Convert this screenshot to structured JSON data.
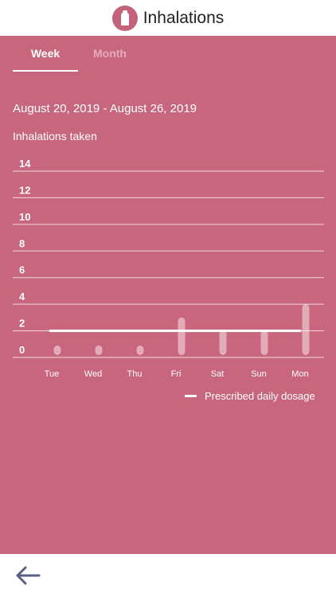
{
  "header": {
    "title": "Inhalations",
    "logo_icon": "inhaler-icon"
  },
  "tabs": [
    {
      "label": "Week",
      "active": true
    },
    {
      "label": "Month",
      "active": false
    }
  ],
  "date_range": "August 20, 2019 - August 26, 2019",
  "subtitle": "Inhalations taken",
  "legend": {
    "label": "Prescribed daily dosage"
  },
  "footer": {
    "back_icon": "arrow-left-icon"
  },
  "colors": {
    "accent": "#c8667d",
    "icon": "#5b5f86"
  },
  "chart_data": {
    "type": "bar",
    "categories": [
      "Tue",
      "Wed",
      "Thu",
      "Fri",
      "Sat",
      "Sun",
      "Mon"
    ],
    "values": [
      0,
      0,
      0,
      3,
      2,
      2,
      4
    ],
    "y_ticks": [
      "14",
      "12",
      "10",
      "8",
      "6",
      "4",
      "2",
      "0"
    ],
    "ylim": [
      0,
      14
    ],
    "prescribed_daily_dosage": 2,
    "grid": true
  }
}
